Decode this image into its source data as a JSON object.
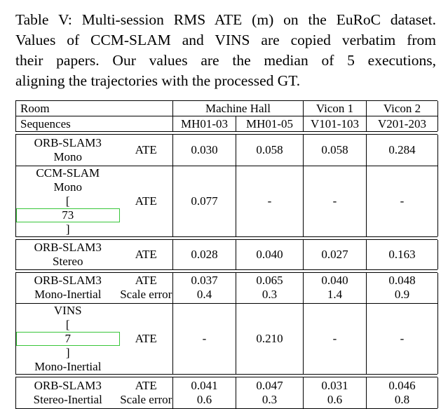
{
  "caption": {
    "lines": [
      "Table V: Multi-session RMS ATE (m) on the EuRoC dataset.",
      "Values of CCM-SLAM and VINS are copied verbatim from",
      "their papers. Our values are the median of 5 executions,",
      "aligning the trajectories with the processed GT."
    ]
  },
  "header": {
    "room_label": "Room",
    "sequences_label": "Sequences",
    "groups": [
      "Machine Hall",
      "Vicon 1",
      "Vicon 2"
    ],
    "sequences": [
      "MH01-03",
      "MH01-05",
      "V101-103",
      "V201-203"
    ]
  },
  "rows": {
    "orb_mono": {
      "name1": "ORB-SLAM3",
      "name2": "Mono",
      "metric": "ATE",
      "v": [
        "0.030",
        "0.058",
        "0.058",
        "0.284"
      ]
    },
    "ccm_mono": {
      "name1": "CCM-SLAM",
      "name2": "Mono",
      "cite": "73",
      "metric": "ATE",
      "v": [
        "0.077",
        "-",
        "-",
        "-"
      ]
    },
    "orb_stereo": {
      "name1": "ORB-SLAM3",
      "name2": "Stereo",
      "metric": "ATE",
      "v": [
        "0.028",
        "0.040",
        "0.027",
        "0.163"
      ]
    },
    "orb_mono_inertial": {
      "name1": "ORB-SLAM3",
      "name2": "Mono-Inertial",
      "metric1": "ATE",
      "metric2": "Scale error",
      "ate": [
        "0.037",
        "0.065",
        "0.040",
        "0.048"
      ],
      "scale": [
        "0.4",
        "0.3",
        "1.4",
        "0.9"
      ]
    },
    "vins": {
      "name1": "VINS",
      "cite": "7",
      "name2": "Mono-Inertial",
      "metric": "ATE",
      "v": [
        "-",
        "0.210",
        "-",
        "-"
      ]
    },
    "orb_stereo_inertial": {
      "name1": "ORB-SLAM3",
      "name2": "Stereo-Inertial",
      "metric1": "ATE",
      "metric2": "Scale error",
      "ate": [
        "0.041",
        "0.047",
        "0.031",
        "0.046"
      ],
      "scale": [
        "0.6",
        "0.3",
        "0.6",
        "0.8"
      ]
    }
  }
}
